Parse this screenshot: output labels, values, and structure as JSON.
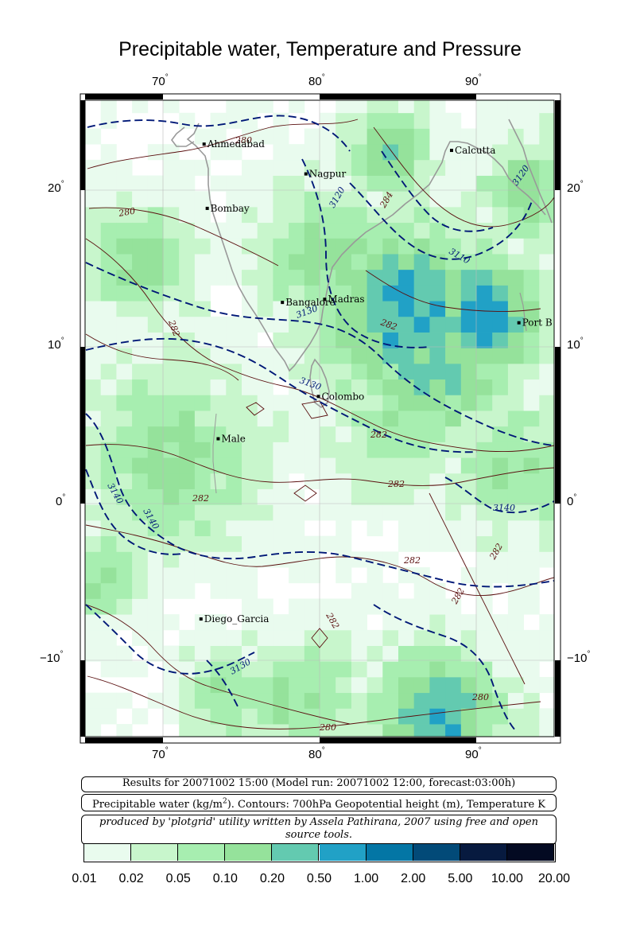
{
  "title": "Precipitable water, Temperature and Pressure",
  "axes": {
    "lon_ticks": [
      "70",
      "80",
      "90"
    ],
    "lat_ticks": [
      "20",
      "10",
      "0",
      "−10"
    ],
    "degree_symbol": "°"
  },
  "cities": [
    {
      "name": "Ahmedabad",
      "lon": 72.6,
      "lat": 23.0
    },
    {
      "name": "Calcutta",
      "lon": 88.4,
      "lat": 22.6
    },
    {
      "name": "Nagpur",
      "lon": 79.1,
      "lat": 21.1
    },
    {
      "name": "Bombay",
      "lon": 72.8,
      "lat": 18.9
    },
    {
      "name": "Madras",
      "lon": 80.3,
      "lat": 13.1
    },
    {
      "name": "Bangalore",
      "lon": 77.6,
      "lat": 12.9
    },
    {
      "name": "Port Blair",
      "lon": 92.7,
      "lat": 11.6
    },
    {
      "name": "Colombo",
      "lon": 79.9,
      "lat": 6.9
    },
    {
      "name": "Male",
      "lon": 73.5,
      "lat": 4.2
    },
    {
      "name": "Diego_Garcia",
      "lon": 72.4,
      "lat": -7.3
    }
  ],
  "city_labels": {
    "Ahmedabad": "Ahmedabad",
    "Calcutta": "Calcutta",
    "Nagpur": "Nagpur",
    "Bombay": "Bombay",
    "Madras": "Madras",
    "Bangalore": "Bangalore",
    "Port Blair": "Port B",
    "Colombo": "Colombo",
    "Male": "Male",
    "Diego_Garcia": "Diego_Garcia"
  },
  "contour_labels": {
    "pressure": [
      "3130",
      "3120",
      "3110",
      "3120",
      "3130",
      "3140",
      "3140",
      "3140",
      "3130"
    ],
    "temperature": [
      "280",
      "280",
      "284",
      "282",
      "282",
      "282",
      "282",
      "282",
      "282",
      "282",
      "282",
      "282",
      "280",
      "280"
    ]
  },
  "info": {
    "run": "Results for 20071002 15:00 (Model run: 20071002 12:00, forecast:03:00h)",
    "legend_text_prefix": "Precipitable water (kg/m",
    "legend_text_sup": "2",
    "legend_text_suffix": ").  Contours: 700hPa Geopotential height (m), Temperature K",
    "credit": "produced by 'plotgrid' utility written by Assela Pathirana, 2007 using free and open source tools."
  },
  "colorbar": {
    "labels": [
      "0.01",
      "0.02",
      "0.05",
      "0.10",
      "0.20",
      "0.50",
      "1.00",
      "2.00",
      "5.00",
      "10.00",
      "20.00"
    ],
    "colors": [
      "#e9fbee",
      "#c8f6cc",
      "#a7eeb0",
      "#95e29b",
      "#63cab0",
      "#21a1c6",
      "#0376a5",
      "#024a78",
      "#071a3f",
      "#030a22"
    ]
  },
  "colors": {
    "pressure_contour": "#001877",
    "temperature_contour": "#5a0f0f",
    "coastline": "#999999",
    "frame": "#000000",
    "grid": "#bbbbbb"
  }
}
